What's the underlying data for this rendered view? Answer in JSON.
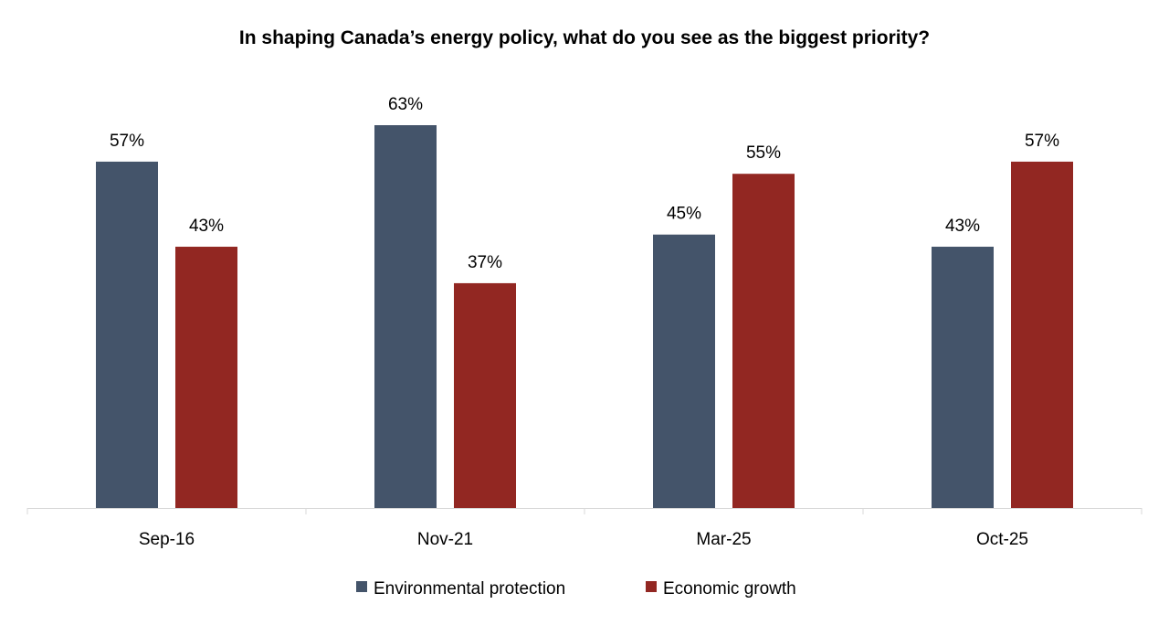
{
  "chart_data": {
    "type": "bar",
    "title": "In shaping Canada’s energy policy, what do you see as the biggest priority?",
    "categories": [
      "Sep-16",
      "Nov-21",
      "Mar-25",
      "Oct-25"
    ],
    "series": [
      {
        "name": "Environmental protection",
        "values": [
          57,
          63,
          45,
          43
        ],
        "labels": [
          "57%",
          "63%",
          "45%",
          "43%"
        ],
        "color": "#44546A"
      },
      {
        "name": "Economic growth",
        "values": [
          43,
          37,
          55,
          57
        ],
        "labels": [
          "43%",
          "37%",
          "55%",
          "57%"
        ],
        "color": "#922722"
      }
    ],
    "xlabel": "",
    "ylabel": "",
    "ylim": [
      0,
      100
    ],
    "grid": false,
    "legend_position": "bottom"
  }
}
